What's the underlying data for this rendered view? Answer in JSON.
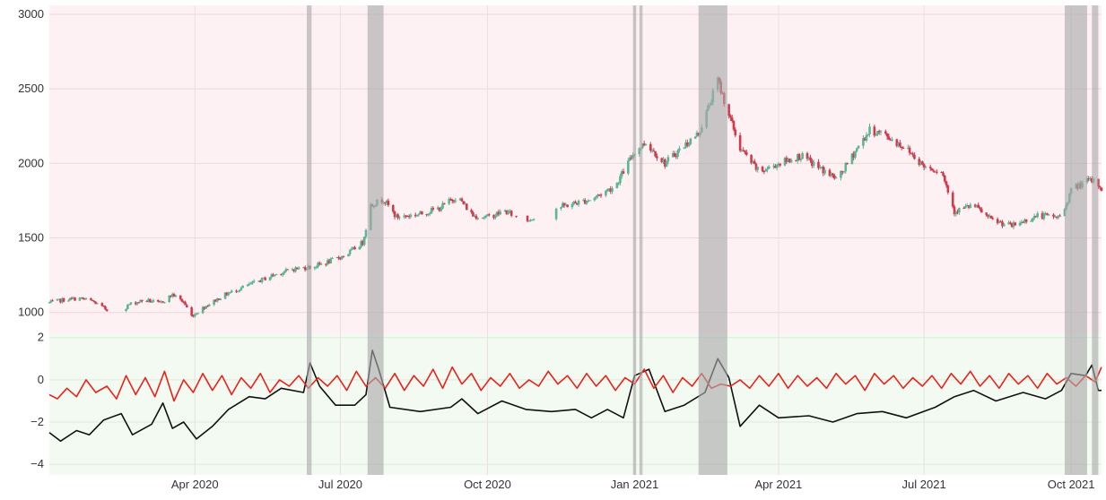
{
  "chart_data": [
    {
      "type": "candlestick",
      "panel": "price",
      "ylim": [
        860,
        3060
      ],
      "yticks": [
        1000,
        1500,
        2000,
        2500,
        3000
      ],
      "ytick_labels": [
        "1000",
        "1500",
        "2000",
        "2500",
        "3000"
      ],
      "x_range": [
        "2020-01-01",
        "2021-10-20"
      ],
      "grid": true,
      "background_color": "#fdf1f3",
      "up_color": "#5cb594",
      "down_color": "#d23a4c",
      "close_path": [
        [
          "2020-01-01",
          1065
        ],
        [
          "2020-01-10",
          1085
        ],
        [
          "2020-01-20",
          1095
        ],
        [
          "2020-01-28",
          1075
        ],
        [
          "2020-02-04",
          1030
        ],
        [
          "2020-02-12",
          980
        ],
        [
          "2020-02-20",
          1055
        ],
        [
          "2020-03-01",
          1085
        ],
        [
          "2020-03-10",
          1060
        ],
        [
          "2020-03-18",
          1120
        ],
        [
          "2020-03-25",
          1070
        ],
        [
          "2020-03-30",
          975
        ],
        [
          "2020-04-08",
          1045
        ],
        [
          "2020-04-20",
          1120
        ],
        [
          "2020-05-05",
          1185
        ],
        [
          "2020-05-20",
          1250
        ],
        [
          "2020-06-01",
          1290
        ],
        [
          "2020-06-15",
          1310
        ],
        [
          "2020-06-25",
          1345
        ],
        [
          "2020-07-05",
          1390
        ],
        [
          "2020-07-15",
          1470
        ],
        [
          "2020-07-20",
          1720
        ],
        [
          "2020-07-28",
          1760
        ],
        [
          "2020-08-05",
          1640
        ],
        [
          "2020-08-20",
          1660
        ],
        [
          "2020-09-01",
          1700
        ],
        [
          "2020-09-12",
          1780
        ],
        [
          "2020-09-22",
          1650
        ],
        [
          "2020-10-01",
          1640
        ],
        [
          "2020-10-12",
          1680
        ],
        [
          "2020-10-25",
          1610
        ],
        [
          "2020-11-05",
          1680
        ],
        [
          "2020-11-20",
          1720
        ],
        [
          "2020-12-05",
          1760
        ],
        [
          "2020-12-20",
          1850
        ],
        [
          "2021-01-01",
          2080
        ],
        [
          "2021-01-08",
          2140
        ],
        [
          "2021-01-20",
          2000
        ],
        [
          "2021-02-01",
          2120
        ],
        [
          "2021-02-10",
          2200
        ],
        [
          "2021-02-17",
          2400
        ],
        [
          "2021-02-22",
          2560
        ],
        [
          "2021-02-27",
          2390
        ],
        [
          "2021-03-08",
          2100
        ],
        [
          "2021-03-20",
          1940
        ],
        [
          "2021-04-01",
          2000
        ],
        [
          "2021-04-15",
          2050
        ],
        [
          "2021-04-28",
          1960
        ],
        [
          "2021-05-08",
          1890
        ],
        [
          "2021-05-20",
          2100
        ],
        [
          "2021-05-28",
          2220
        ],
        [
          "2021-06-05",
          2200
        ],
        [
          "2021-06-20",
          2100
        ],
        [
          "2021-07-01",
          1980
        ],
        [
          "2021-07-12",
          1950
        ],
        [
          "2021-07-20",
          1680
        ],
        [
          "2021-08-01",
          1720
        ],
        [
          "2021-08-12",
          1620
        ],
        [
          "2021-08-25",
          1580
        ],
        [
          "2021-09-10",
          1650
        ],
        [
          "2021-09-25",
          1640
        ],
        [
          "2021-10-01",
          1820
        ],
        [
          "2021-10-10",
          1880
        ],
        [
          "2021-10-16",
          1880
        ],
        [
          "2021-10-20",
          1830
        ]
      ]
    },
    {
      "type": "line",
      "panel": "indicators",
      "ylim": [
        -4.5,
        2.2
      ],
      "yticks": [
        -4,
        -2,
        0,
        2
      ],
      "ytick_labels": [
        "−4",
        "−2",
        "0",
        "2"
      ],
      "x_range": [
        "2020-01-01",
        "2021-10-20"
      ],
      "grid": true,
      "background_color": "#f3faf1",
      "series": [
        {
          "color": "#111111",
          "values": [
            [
              "2020-01-01",
              -2.5
            ],
            [
              "2020-01-08",
              -2.9
            ],
            [
              "2020-01-18",
              -2.4
            ],
            [
              "2020-01-26",
              -2.6
            ],
            [
              "2020-02-04",
              -1.9
            ],
            [
              "2020-02-15",
              -1.6
            ],
            [
              "2020-02-22",
              -2.6
            ],
            [
              "2020-03-05",
              -2.1
            ],
            [
              "2020-03-12",
              -1.1
            ],
            [
              "2020-03-18",
              -2.3
            ],
            [
              "2020-03-25",
              -2.0
            ],
            [
              "2020-04-02",
              -2.8
            ],
            [
              "2020-04-12",
              -2.2
            ],
            [
              "2020-04-22",
              -1.4
            ],
            [
              "2020-05-05",
              -0.8
            ],
            [
              "2020-05-15",
              -0.9
            ],
            [
              "2020-05-25",
              -0.4
            ],
            [
              "2020-06-08",
              -0.6
            ],
            [
              "2020-06-12",
              0.8
            ],
            [
              "2020-06-18",
              -0.3
            ],
            [
              "2020-06-28",
              -1.2
            ],
            [
              "2020-07-10",
              -1.2
            ],
            [
              "2020-07-17",
              -0.7
            ],
            [
              "2020-07-21",
              1.4
            ],
            [
              "2020-07-25",
              0.5
            ],
            [
              "2020-08-01",
              -1.3
            ],
            [
              "2020-08-20",
              -1.5
            ],
            [
              "2020-09-08",
              -1.3
            ],
            [
              "2020-09-15",
              -0.9
            ],
            [
              "2020-09-25",
              -1.6
            ],
            [
              "2020-10-10",
              -1.0
            ],
            [
              "2020-10-25",
              -1.4
            ],
            [
              "2020-11-10",
              -1.5
            ],
            [
              "2020-11-25",
              -1.4
            ],
            [
              "2020-12-05",
              -1.8
            ],
            [
              "2020-12-15",
              -1.4
            ],
            [
              "2020-12-25",
              -1.8
            ],
            [
              "2021-01-01",
              0.2
            ],
            [
              "2021-01-10",
              0.5
            ],
            [
              "2021-01-20",
              -1.5
            ],
            [
              "2021-02-01",
              -1.2
            ],
            [
              "2021-02-14",
              -0.6
            ],
            [
              "2021-02-22",
              1.0
            ],
            [
              "2021-03-01",
              0.1
            ],
            [
              "2021-03-08",
              -2.2
            ],
            [
              "2021-03-20",
              -1.2
            ],
            [
              "2021-04-01",
              -1.8
            ],
            [
              "2021-04-20",
              -1.7
            ],
            [
              "2021-05-05",
              -2.0
            ],
            [
              "2021-05-20",
              -1.6
            ],
            [
              "2021-06-05",
              -1.5
            ],
            [
              "2021-06-20",
              -1.8
            ],
            [
              "2021-07-08",
              -1.3
            ],
            [
              "2021-07-20",
              -0.8
            ],
            [
              "2021-08-01",
              -0.5
            ],
            [
              "2021-08-15",
              -1.0
            ],
            [
              "2021-09-01",
              -0.6
            ],
            [
              "2021-09-15",
              -0.9
            ],
            [
              "2021-09-25",
              -0.5
            ],
            [
              "2021-10-01",
              0.3
            ],
            [
              "2021-10-10",
              0.2
            ],
            [
              "2021-10-14",
              0.7
            ],
            [
              "2021-10-18",
              -0.5
            ],
            [
              "2021-10-20",
              -0.5
            ]
          ]
        },
        {
          "color": "#e8221b",
          "values": [
            [
              "2020-01-01",
              -0.7
            ],
            [
              "2020-01-06",
              -0.9
            ],
            [
              "2020-01-12",
              -0.4
            ],
            [
              "2020-01-18",
              -0.8
            ],
            [
              "2020-01-24",
              0.0
            ],
            [
              "2020-01-30",
              -0.6
            ],
            [
              "2020-02-06",
              -0.3
            ],
            [
              "2020-02-12",
              -0.9
            ],
            [
              "2020-02-18",
              0.2
            ],
            [
              "2020-02-24",
              -0.7
            ],
            [
              "2020-03-01",
              0.1
            ],
            [
              "2020-03-07",
              -0.8
            ],
            [
              "2020-03-13",
              0.4
            ],
            [
              "2020-03-19",
              -1.0
            ],
            [
              "2020-03-25",
              0.0
            ],
            [
              "2020-03-31",
              -0.6
            ],
            [
              "2020-04-06",
              0.3
            ],
            [
              "2020-04-12",
              -0.5
            ],
            [
              "2020-04-18",
              0.2
            ],
            [
              "2020-04-24",
              -0.7
            ],
            [
              "2020-04-30",
              0.1
            ],
            [
              "2020-05-06",
              -0.4
            ],
            [
              "2020-05-12",
              0.3
            ],
            [
              "2020-05-18",
              -0.6
            ],
            [
              "2020-05-24",
              0.0
            ],
            [
              "2020-05-30",
              -0.3
            ],
            [
              "2020-06-05",
              0.2
            ],
            [
              "2020-06-11",
              -0.4
            ],
            [
              "2020-06-17",
              0.1
            ],
            [
              "2020-06-23",
              -0.3
            ],
            [
              "2020-06-29",
              0.2
            ],
            [
              "2020-07-05",
              -0.5
            ],
            [
              "2020-07-11",
              0.4
            ],
            [
              "2020-07-17",
              -0.3
            ],
            [
              "2020-07-23",
              0.1
            ],
            [
              "2020-07-29",
              -0.4
            ],
            [
              "2020-08-04",
              0.3
            ],
            [
              "2020-08-10",
              -0.5
            ],
            [
              "2020-08-16",
              0.2
            ],
            [
              "2020-08-22",
              -0.3
            ],
            [
              "2020-08-28",
              0.5
            ],
            [
              "2020-09-03",
              -0.4
            ],
            [
              "2020-09-09",
              0.6
            ],
            [
              "2020-09-15",
              -0.2
            ],
            [
              "2020-09-21",
              0.3
            ],
            [
              "2020-09-27",
              -0.5
            ],
            [
              "2020-10-03",
              0.1
            ],
            [
              "2020-10-09",
              -0.3
            ],
            [
              "2020-10-15",
              0.3
            ],
            [
              "2020-10-21",
              -0.4
            ],
            [
              "2020-10-27",
              0.0
            ],
            [
              "2020-11-02",
              -0.3
            ],
            [
              "2020-11-08",
              0.4
            ],
            [
              "2020-11-14",
              -0.2
            ],
            [
              "2020-11-20",
              0.2
            ],
            [
              "2020-11-26",
              -0.4
            ],
            [
              "2020-12-02",
              0.3
            ],
            [
              "2020-12-08",
              -0.3
            ],
            [
              "2020-12-14",
              0.2
            ],
            [
              "2020-12-20",
              -0.5
            ],
            [
              "2020-12-26",
              0.1
            ],
            [
              "2021-01-01",
              -0.2
            ],
            [
              "2021-01-07",
              0.5
            ],
            [
              "2021-01-13",
              -0.4
            ],
            [
              "2021-01-19",
              0.2
            ],
            [
              "2021-01-25",
              -0.6
            ],
            [
              "2021-01-31",
              0.1
            ],
            [
              "2021-02-06",
              -0.3
            ],
            [
              "2021-02-12",
              0.3
            ],
            [
              "2021-02-18",
              -0.4
            ],
            [
              "2021-02-24",
              -0.2
            ],
            [
              "2021-03-02",
              -0.3
            ],
            [
              "2021-03-08",
              0.0
            ],
            [
              "2021-03-14",
              -0.4
            ],
            [
              "2021-03-20",
              0.2
            ],
            [
              "2021-03-26",
              -0.3
            ],
            [
              "2021-04-01",
              0.3
            ],
            [
              "2021-04-07",
              -0.4
            ],
            [
              "2021-04-13",
              0.2
            ],
            [
              "2021-04-19",
              -0.3
            ],
            [
              "2021-04-25",
              0.1
            ],
            [
              "2021-05-01",
              -0.4
            ],
            [
              "2021-05-07",
              0.3
            ],
            [
              "2021-05-13",
              -0.2
            ],
            [
              "2021-05-19",
              0.2
            ],
            [
              "2021-05-25",
              -0.5
            ],
            [
              "2021-05-31",
              0.3
            ],
            [
              "2021-06-06",
              -0.2
            ],
            [
              "2021-06-12",
              0.2
            ],
            [
              "2021-06-18",
              -0.4
            ],
            [
              "2021-06-24",
              0.1
            ],
            [
              "2021-06-30",
              -0.3
            ],
            [
              "2021-07-06",
              0.2
            ],
            [
              "2021-07-12",
              -0.4
            ],
            [
              "2021-07-18",
              0.3
            ],
            [
              "2021-07-24",
              -0.2
            ],
            [
              "2021-07-30",
              0.4
            ],
            [
              "2021-08-05",
              -0.3
            ],
            [
              "2021-08-11",
              0.2
            ],
            [
              "2021-08-17",
              -0.4
            ],
            [
              "2021-08-23",
              0.3
            ],
            [
              "2021-08-29",
              -0.2
            ],
            [
              "2021-09-04",
              0.2
            ],
            [
              "2021-09-10",
              -0.4
            ],
            [
              "2021-09-16",
              0.3
            ],
            [
              "2021-09-22",
              -0.2
            ],
            [
              "2021-09-28",
              0.1
            ],
            [
              "2021-10-04",
              -0.3
            ],
            [
              "2021-10-10",
              0.2
            ],
            [
              "2021-10-16",
              -0.1
            ],
            [
              "2021-10-20",
              0.6
            ]
          ]
        }
      ]
    }
  ],
  "x_axis": {
    "ticks": [
      {
        "date": "2020-04-01",
        "label": "Apr 2020"
      },
      {
        "date": "2020-07-01",
        "label": "Jul 2020"
      },
      {
        "date": "2020-10-01",
        "label": "Oct 2020"
      },
      {
        "date": "2021-01-01",
        "label": "Jan 2021"
      },
      {
        "date": "2021-04-01",
        "label": "Apr 2021"
      },
      {
        "date": "2021-07-01",
        "label": "Jul 2021"
      },
      {
        "date": "2021-10-01",
        "label": "Oct 2021"
      }
    ]
  },
  "highlight_regions": {
    "color": "#a9a9a9",
    "ranges": [
      [
        "2020-06-10",
        "2020-06-13"
      ],
      [
        "2020-07-18",
        "2020-07-28"
      ],
      [
        "2020-12-31",
        "2021-01-02"
      ],
      [
        "2021-01-04",
        "2021-01-06"
      ],
      [
        "2021-02-10",
        "2021-02-28"
      ],
      [
        "2021-09-27",
        "2021-10-11"
      ],
      [
        "2021-10-14",
        "2021-10-18"
      ]
    ]
  }
}
